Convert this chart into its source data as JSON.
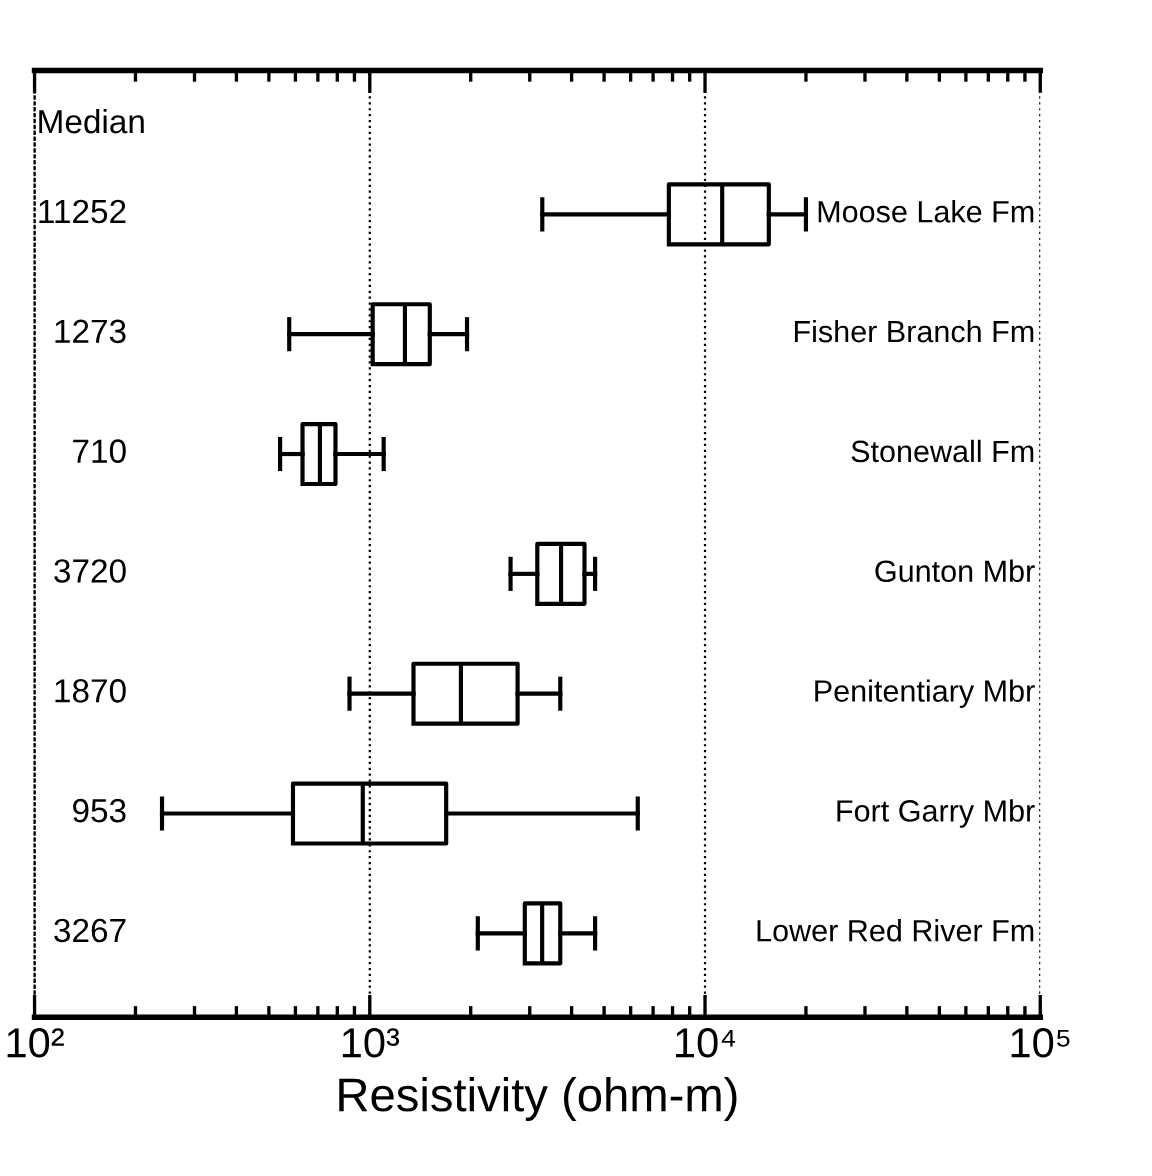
{
  "chart_data": {
    "type": "box",
    "orientation": "horizontal",
    "xlabel": "Resistivity (ohm-m)",
    "log": "x",
    "grid": "x",
    "categories": [
      "Moose Lake Fm",
      "Fisher Branch Fm",
      "Stonewall Fm",
      "Gunton Mbr",
      "Penitentiary Mbr",
      "Fort Garry Mbr",
      "Lower Red River Fm"
    ],
    "boxes": [
      {
        "low": 3270,
        "q1": 7800,
        "median": 11252,
        "q3": 15500,
        "high": 20000
      },
      {
        "low": 575,
        "q1": 1020,
        "median": 1273,
        "q3": 1510,
        "high": 1950
      },
      {
        "low": 540,
        "q1": 630,
        "median": 710,
        "q3": 790,
        "high": 1100
      },
      {
        "low": 2630,
        "q1": 3160,
        "median": 3720,
        "q3": 4370,
        "high": 4700
      },
      {
        "low": 870,
        "q1": 1350,
        "median": 1870,
        "q3": 2760,
        "high": 3700
      },
      {
        "low": 240,
        "q1": 590,
        "median": 953,
        "q3": 1690,
        "high": 6300
      },
      {
        "low": 2100,
        "q1": 2900,
        "median": 3267,
        "q3": 3700,
        "high": 4700
      }
    ],
    "value_labels": [
      "11252",
      "1273",
      "710",
      "3720",
      "1870",
      "953",
      "3267"
    ],
    "annotations": [
      "Median"
    ],
    "xlim": [
      100,
      100000
    ],
    "xticks": [
      {
        "value": 100,
        "label": "10²"
      },
      {
        "value": 1000,
        "label": "10³"
      },
      {
        "value": 10000,
        "label": "10⁴"
      },
      {
        "value": 100000,
        "label": "10⁵"
      }
    ]
  }
}
